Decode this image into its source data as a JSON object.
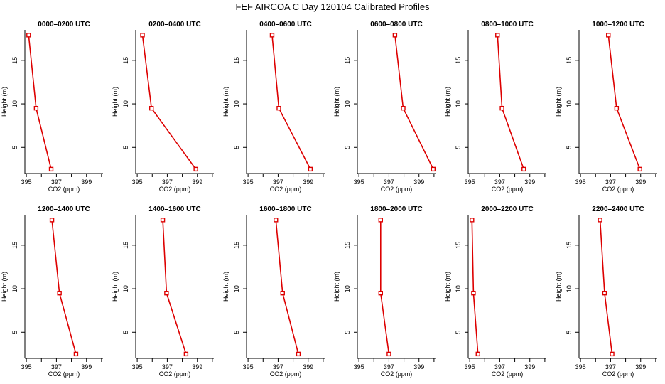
{
  "title": "FEF AIRCOA C  Day 120104  Calibrated Profiles",
  "colors": {
    "line": "#dd0000",
    "axis": "#000000"
  },
  "chart_data": {
    "type": "line",
    "xlabel": "CO2 (ppm)",
    "ylabel": "Height (m)",
    "xlim": [
      394.9,
      400.1
    ],
    "ylim": [
      2.0,
      18.5
    ],
    "xticks": [
      395,
      397,
      399
    ],
    "xticks_minor": [
      396,
      398,
      400
    ],
    "yticks": [
      5,
      10,
      15
    ],
    "marker": "open-square",
    "heights": [
      17.9,
      9.5,
      2.5
    ],
    "panels": [
      {
        "title": "0000–0200 UTC",
        "co2": [
          395.15,
          395.65,
          396.65
        ]
      },
      {
        "title": "0200–0400 UTC",
        "co2": [
          395.35,
          395.95,
          398.9
        ]
      },
      {
        "title": "0400–0600 UTC",
        "co2": [
          396.6,
          397.05,
          399.15
        ]
      },
      {
        "title": "0600–0800 UTC",
        "co2": [
          397.4,
          397.95,
          399.95
        ]
      },
      {
        "title": "0800–1000 UTC",
        "co2": [
          396.85,
          397.15,
          398.6
        ]
      },
      {
        "title": "1000–1200 UTC",
        "co2": [
          396.85,
          397.4,
          398.95
        ]
      },
      {
        "title": "1200–1400 UTC",
        "co2": [
          396.7,
          397.2,
          398.3
        ]
      },
      {
        "title": "1400–1600 UTC",
        "co2": [
          396.7,
          396.95,
          398.25
        ]
      },
      {
        "title": "1600–1800 UTC",
        "co2": [
          396.85,
          397.3,
          398.35
        ]
      },
      {
        "title": "1800–2000 UTC",
        "co2": [
          396.45,
          396.45,
          397.0
        ]
      },
      {
        "title": "2000–2200 UTC",
        "co2": [
          395.15,
          395.25,
          395.55
        ]
      },
      {
        "title": "2200–2400 UTC",
        "co2": [
          396.3,
          396.6,
          397.1
        ]
      }
    ]
  }
}
